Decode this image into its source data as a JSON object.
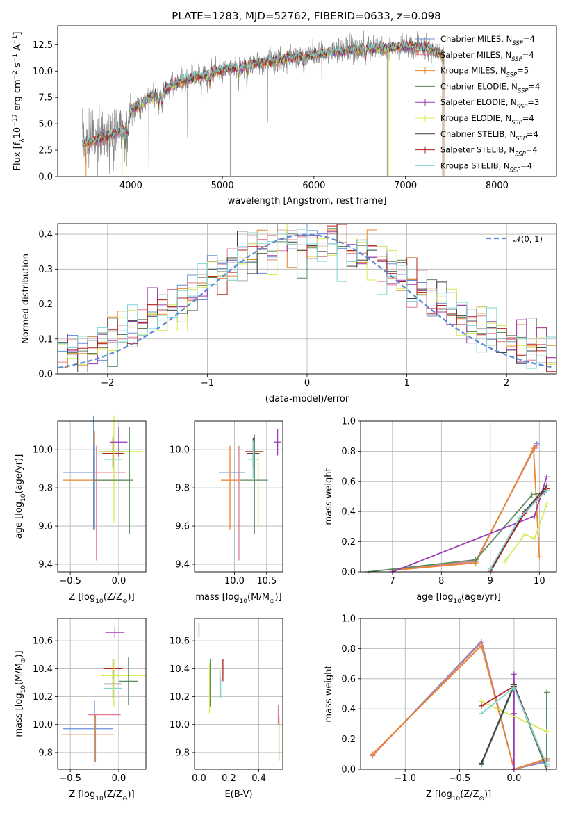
{
  "figure": {
    "title": "PLATE=1283, MJD=52762, FIBERID=0633, z=0.098"
  },
  "series_styles": [
    {
      "name": "Chabrier MILES, N$_{SSP}$=4",
      "label_main": "Chabrier MILES, N",
      "label_sub": "SSP",
      "label_tail": "=4",
      "color": "#6b8fd6"
    },
    {
      "name": "Salpeter MILES, N$_{SSP}$=4",
      "label_main": "Salpeter MILES, N",
      "label_sub": "SSP",
      "label_tail": "=4",
      "color": "#e07b91"
    },
    {
      "name": "Kroupa MILES, N$_{SSP}$=5",
      "label_main": "Kroupa MILES, N",
      "label_sub": "SSP",
      "label_tail": "=5",
      "color": "#e8862c"
    },
    {
      "name": "Chabrier ELODIE, N$_{SSP}$=4",
      "label_main": "Chabrier ELODIE, N",
      "label_sub": "SSP",
      "label_tail": "=4",
      "color": "#5b8a5e"
    },
    {
      "name": "Salpeter ELODIE, N$_{SSP}$=3",
      "label_main": "Salpeter ELODIE, N",
      "label_sub": "SSP",
      "label_tail": "=3",
      "color": "#9a3ab5"
    },
    {
      "name": "Kroupa ELODIE, N$_{SSP}$=4",
      "label_main": "Kroupa ELODIE, N",
      "label_sub": "SSP",
      "label_tail": "=4",
      "color": "#d4ec50"
    },
    {
      "name": "Chabrier STELIB, N$_{SSP}$=4",
      "label_main": "Chabrier STELIB, N",
      "label_sub": "SSP",
      "label_tail": "=4",
      "color": "#3f3f3f"
    },
    {
      "name": "Salpeter STELIB, N$_{SSP}$=4",
      "label_main": "Salpeter STELIB, N",
      "label_sub": "SSP",
      "label_tail": "=4",
      "color": "#b32020"
    },
    {
      "name": "Kroupa STELIB, N$_{SSP}$=4",
      "label_main": "Kroupa STELIB, N",
      "label_sub": "SSP",
      "label_tail": "=4",
      "color": "#7fd6d6"
    }
  ],
  "chart_data": [
    {
      "id": "spectrum",
      "type": "line",
      "title": "PLATE=1283, MJD=52762, FIBERID=0633, z=0.098",
      "xlabel": "wavelength [Angstrom, rest frame]",
      "ylabel_main": "Flux [f",
      "ylabel_sub": "λ",
      "ylabel_tail": "10",
      "ylabel_sup1": "−17",
      "ylabel_mid": " erg cm",
      "ylabel_sup2": "−2",
      "ylabel_mid2": " s",
      "ylabel_sup3": "−1",
      "ylabel_mid3": " A",
      "ylabel_sup4": "−1",
      "ylabel_end": "]",
      "xlim": [
        3200,
        8650
      ],
      "ylim": [
        0,
        14.3
      ],
      "xticks": [
        4000,
        5000,
        6000,
        7000,
        8000
      ],
      "xtick_labels": [
        "4000",
        "5000",
        "6000",
        "7000",
        "8000"
      ],
      "yticks": [
        0,
        2.5,
        5,
        7.5,
        10,
        12.5
      ],
      "ytick_labels": [
        "0.0",
        "2.5",
        "5.0",
        "7.5",
        "10.0",
        "12.5"
      ],
      "data_color": "#808080",
      "data_range": [
        3470,
        7420
      ],
      "continuum_knots": {
        "x": [
          3470,
          3600,
          3700,
          3800,
          3900,
          3950,
          4000,
          4100,
          4200,
          4300,
          4400,
          4600,
          4800,
          5000,
          5200,
          5400,
          5600,
          5800,
          6000,
          6200,
          6400,
          6600,
          6800,
          7000,
          7200,
          7420
        ],
        "y": [
          3.1,
          3.4,
          3.6,
          4.0,
          4.5,
          4.4,
          6.3,
          6.8,
          7.5,
          7.6,
          8.4,
          9.2,
          9.6,
          10.1,
          10.4,
          10.8,
          11.0,
          11.3,
          11.5,
          11.8,
          12.0,
          12.1,
          12.2,
          12.3,
          12.2,
          11.6
        ]
      },
      "absorption_features_x": [
        3934,
        3968,
        4102,
        4304,
        4340,
        4861,
        5175,
        5270,
        5890,
        6563
      ],
      "legend": "upper right"
    },
    {
      "id": "residuals",
      "type": "histogram",
      "xlabel": "(data-model)/error",
      "ylabel": "Normed distribution",
      "xlim": [
        -2.5,
        2.5
      ],
      "ylim": [
        0,
        0.43
      ],
      "xticks": [
        -2,
        -1,
        0,
        1,
        2
      ],
      "xtick_labels": [
        "−2",
        "−1",
        "0",
        "1",
        "2"
      ],
      "yticks": [
        0,
        0.1,
        0.2,
        0.3,
        0.4
      ],
      "ytick_labels": [
        "0.0",
        "0.1",
        "0.2",
        "0.3",
        "0.4"
      ],
      "grid": true,
      "bin_width": 0.1,
      "reference_curve": {
        "label": "𝒩(0, 1)",
        "mean": 0,
        "sigma": 1,
        "color": "#5b8ad6"
      },
      "legend": "upper right"
    },
    {
      "id": "age-vs-Z",
      "type": "errorbar",
      "xlabel_main": "Z [log",
      "xlabel_sub": "10",
      "xlabel_tail": "(Z/Z",
      "xlabel_sub2": "⊙",
      "xlabel_end": ")]",
      "ylabel_main": "age  [log",
      "ylabel_sub": "10",
      "ylabel_tail": "(age/yr)]",
      "xlim": [
        -0.63,
        0.28
      ],
      "ylim": [
        9.36,
        10.15
      ],
      "xticks": [
        -0.5,
        0.0
      ],
      "xtick_labels": [
        "−0.5",
        "0.0"
      ],
      "yticks": [
        9.4,
        9.6,
        9.8,
        10.0
      ],
      "ytick_labels": [
        "9.4",
        "9.6",
        "9.8",
        "10.0"
      ],
      "grid": true,
      "points": [
        {
          "x": -0.26,
          "xerr": 0.32,
          "y": 9.88,
          "yerr": 0.3,
          "series": 0
        },
        {
          "x": -0.25,
          "xerr": 0.33,
          "y": 9.84,
          "yerr": 0.26,
          "series": 2
        },
        {
          "x": -0.25,
          "xerr": 0.0,
          "y": 9.8,
          "yerr": 0.22,
          "series": 0
        },
        {
          "x": -0.23,
          "xerr": 0.0,
          "y": 9.72,
          "yerr": 0.3,
          "series": 1
        },
        {
          "x": -0.1,
          "xerr": 0.17,
          "y": 9.88,
          "yerr": 0.0,
          "series": 1
        },
        {
          "x": -0.06,
          "xerr": 0.12,
          "y": 9.99,
          "yerr": 0.08,
          "series": 6
        },
        {
          "x": -0.06,
          "xerr": 0.11,
          "y": 9.98,
          "yerr": 0.08,
          "series": 7
        },
        {
          "x": -0.06,
          "xerr": 0.09,
          "y": 9.95,
          "yerr": 0.0,
          "series": 8
        },
        {
          "x": -0.05,
          "xerr": 0.0,
          "y": 9.9,
          "yerr": 0.28,
          "series": 5
        },
        {
          "x": 0.0,
          "xerr": 0.09,
          "y": 10.04,
          "yerr": 0.08,
          "series": 4
        },
        {
          "x": 0.02,
          "xerr": 0.23,
          "y": 9.99,
          "yerr": 0.0,
          "series": 5
        },
        {
          "x": -0.05,
          "xerr": 0.2,
          "y": 9.84,
          "yerr": 0.0,
          "series": 3
        },
        {
          "x": 0.11,
          "xerr": 0.0,
          "y": 9.84,
          "yerr": 0.28,
          "series": 3
        }
      ]
    },
    {
      "id": "age-vs-mass",
      "type": "errorbar",
      "xlabel_main": "mass [log",
      "xlabel_sub": "10",
      "xlabel_tail": "(M/M",
      "xlabel_sub2": "⊙",
      "xlabel_end": ")]",
      "xlim": [
        9.38,
        10.75
      ],
      "ylim": [
        9.36,
        10.15
      ],
      "xticks": [
        10.0,
        10.5
      ],
      "xtick_labels": [
        "10.0",
        "10.5"
      ],
      "yticks": [
        9.4,
        9.6,
        9.8,
        10.0
      ],
      "ytick_labels": [
        "9.4",
        "9.6",
        "9.8",
        "10.0"
      ],
      "grid": true,
      "points": [
        {
          "x": 9.96,
          "xerr": 0.2,
          "y": 9.88,
          "yerr": 0.0,
          "series": 0
        },
        {
          "x": 9.93,
          "xerr": 0.14,
          "y": 9.84,
          "yerr": 0.0,
          "series": 2
        },
        {
          "x": 9.93,
          "xerr": 0.0,
          "y": 9.8,
          "yerr": 0.22,
          "series": 2
        },
        {
          "x": 10.07,
          "xerr": 0.0,
          "y": 9.72,
          "yerr": 0.3,
          "series": 1
        },
        {
          "x": 10.29,
          "xerr": 0.1,
          "y": 9.98,
          "yerr": 0.08,
          "series": 6
        },
        {
          "x": 10.31,
          "xerr": 0.14,
          "y": 9.99,
          "yerr": 0.08,
          "series": 7
        },
        {
          "x": 10.29,
          "xerr": 0.08,
          "y": 9.95,
          "yerr": 0.1,
          "series": 8
        },
        {
          "x": 10.37,
          "xerr": 0.0,
          "y": 9.8,
          "yerr": 0.2,
          "series": 5
        },
        {
          "x": 10.31,
          "xerr": 0.0,
          "y": 9.82,
          "yerr": 0.26,
          "series": 3
        },
        {
          "x": 10.3,
          "xerr": 0.22,
          "y": 9.84,
          "yerr": 0.0,
          "series": 3
        },
        {
          "x": 10.67,
          "xerr": 0.05,
          "y": 10.04,
          "yerr": 0.07,
          "series": 4
        }
      ]
    },
    {
      "id": "weight-vs-age",
      "type": "line",
      "xlabel_main": "age  [log",
      "xlabel_sub": "10",
      "xlabel_tail": "(age/yr)]",
      "ylabel": "mass weight",
      "xlim": [
        6.35,
        10.35
      ],
      "ylim": [
        0,
        1.0
      ],
      "xticks": [
        7,
        8,
        9,
        10
      ],
      "xtick_labels": [
        "7",
        "8",
        "9",
        "10"
      ],
      "yticks": [
        0,
        0.2,
        0.4,
        0.6,
        0.8,
        1.0
      ],
      "ytick_labels": [
        "0.0",
        "0.2",
        "0.4",
        "0.6",
        "0.8",
        "1.0"
      ],
      "grid": true,
      "series": [
        {
          "style": 0,
          "x": [
            7.0,
            8.7,
            9.9,
            9.95
          ],
          "y": [
            0.01,
            0.07,
            0.82,
            0.85
          ]
        },
        {
          "style": 1,
          "x": [
            7.0,
            8.7,
            9.9,
            9.95
          ],
          "y": [
            0.01,
            0.07,
            0.82,
            0.84
          ]
        },
        {
          "style": 2,
          "x": [
            7.0,
            8.7,
            9.88,
            10.0
          ],
          "y": [
            0.01,
            0.06,
            0.82,
            0.1
          ]
        },
        {
          "style": 3,
          "x": [
            6.5,
            8.7,
            9.85,
            10.1
          ],
          "y": [
            0.0,
            0.08,
            0.51,
            0.53
          ]
        },
        {
          "style": 4,
          "x": [
            7.0,
            9.9,
            10.15
          ],
          "y": [
            0.0,
            0.37,
            0.63
          ]
        },
        {
          "style": 5,
          "x": [
            9.3,
            9.7,
            9.9,
            10.15
          ],
          "y": [
            0.07,
            0.25,
            0.22,
            0.45
          ]
        },
        {
          "style": 6,
          "x": [
            9.0,
            9.7,
            10.15
          ],
          "y": [
            0.0,
            0.4,
            0.57
          ]
        },
        {
          "style": 7,
          "x": [
            9.0,
            9.7,
            10.15
          ],
          "y": [
            0.01,
            0.39,
            0.55
          ]
        },
        {
          "style": 8,
          "x": [
            9.0,
            9.6,
            10.15
          ],
          "y": [
            0.02,
            0.36,
            0.54
          ]
        }
      ]
    },
    {
      "id": "mass-vs-Z",
      "type": "errorbar",
      "xlabel_main": "Z [log",
      "xlabel_sub": "10",
      "xlabel_tail": "(Z/Z",
      "xlabel_sub2": "⊙",
      "xlabel_end": ")]",
      "ylabel_main": "mass [log",
      "ylabel_sub": "10",
      "ylabel_tail": "(M/M",
      "ylabel_sub2": "⊙",
      "ylabel_end": ")]",
      "xlim": [
        -0.63,
        0.28
      ],
      "ylim": [
        9.68,
        10.76
      ],
      "xticks": [
        -0.5,
        0.0
      ],
      "xtick_labels": [
        "−0.5",
        "0.0"
      ],
      "yticks": [
        9.8,
        10.0,
        10.2,
        10.4,
        10.6
      ],
      "ytick_labels": [
        "9.8",
        "10.0",
        "10.2",
        "10.4",
        "10.6"
      ],
      "grid": true,
      "points": [
        {
          "x": -0.32,
          "xerr": 0.26,
          "y": 9.97,
          "yerr": 0.0,
          "series": 0
        },
        {
          "x": -0.32,
          "xerr": 0.27,
          "y": 9.93,
          "yerr": 0.0,
          "series": 2
        },
        {
          "x": -0.25,
          "xerr": 0.0,
          "y": 9.95,
          "yerr": 0.22,
          "series": 0
        },
        {
          "x": -0.15,
          "xerr": 0.17,
          "y": 10.07,
          "yerr": 0.0,
          "series": 1
        },
        {
          "x": -0.24,
          "xerr": 0.0,
          "y": 9.9,
          "yerr": 0.17,
          "series": 2
        },
        {
          "x": -0.06,
          "xerr": 0.1,
          "y": 10.4,
          "yerr": 0.07,
          "series": 7
        },
        {
          "x": -0.06,
          "xerr": 0.09,
          "y": 10.29,
          "yerr": 0.1,
          "series": 6
        },
        {
          "x": -0.06,
          "xerr": 0.09,
          "y": 10.26,
          "yerr": 0.0,
          "series": 8
        },
        {
          "x": 0.05,
          "xerr": 0.23,
          "y": 10.35,
          "yerr": 0.0,
          "series": 5
        },
        {
          "x": 0.1,
          "xerr": 0.1,
          "y": 10.31,
          "yerr": 0.17,
          "series": 3
        },
        {
          "x": -0.05,
          "xerr": 0.0,
          "y": 10.3,
          "yerr": 0.17,
          "series": 5
        },
        {
          "x": -0.04,
          "xerr": 0.1,
          "y": 10.66,
          "yerr": 0.04,
          "series": 4
        }
      ]
    },
    {
      "id": "mass-vs-ebv",
      "type": "errorbar",
      "xlabel": "E(B-V)",
      "xlim": [
        -0.03,
        0.56
      ],
      "ylim": [
        9.68,
        10.76
      ],
      "xticks": [
        0.0,
        0.2,
        0.4
      ],
      "xtick_labels": [
        "0.0",
        "0.2",
        "0.4"
      ],
      "yticks": [
        9.8,
        10.0,
        10.2,
        10.4,
        10.6
      ],
      "ytick_labels": [
        "9.8",
        "10.0",
        "10.2",
        "10.4",
        "10.6"
      ],
      "grid": true,
      "points": [
        {
          "x": 0.0,
          "xerr": 0,
          "y": 10.68,
          "yerr": 0.05,
          "series": 4
        },
        {
          "x": 0.07,
          "xerr": 0,
          "y": 10.26,
          "yerr": 0.18,
          "series": 5
        },
        {
          "x": 0.075,
          "xerr": 0,
          "y": 10.3,
          "yerr": 0.17,
          "series": 3
        },
        {
          "x": 0.14,
          "xerr": 0,
          "y": 10.29,
          "yerr": 0.1,
          "series": 6
        },
        {
          "x": 0.145,
          "xerr": 0,
          "y": 10.26,
          "yerr": 0.07,
          "series": 8
        },
        {
          "x": 0.16,
          "xerr": 0,
          "y": 10.39,
          "yerr": 0.08,
          "series": 7
        },
        {
          "x": 0.53,
          "xerr": 0,
          "y": 10.07,
          "yerr": 0.07,
          "series": 1
        },
        {
          "x": 0.535,
          "xerr": 0,
          "y": 9.9,
          "yerr": 0.16,
          "series": 2
        }
      ]
    },
    {
      "id": "weight-vs-Z",
      "type": "line",
      "xlabel_main": "Z [log",
      "xlabel_sub": "10",
      "xlabel_tail": "(Z/Z",
      "xlabel_sub2": "⊙",
      "xlabel_end": ")]",
      "ylabel": "mass weight",
      "xlim": [
        -1.41,
        0.39
      ],
      "ylim": [
        0,
        1.0
      ],
      "xticks": [
        -1.0,
        -0.5,
        0.0
      ],
      "xtick_labels": [
        "−1.0",
        "−0.5",
        "0.0"
      ],
      "yticks": [
        0,
        0.2,
        0.4,
        0.6,
        0.8,
        1.0
      ],
      "ytick_labels": [
        "0.0",
        "0.2",
        "0.4",
        "0.6",
        "0.8",
        "1.0"
      ],
      "grid": true,
      "series": [
        {
          "style": 0,
          "x": [
            -1.3,
            -0.3,
            0.0,
            0.3
          ],
          "y": [
            0.09,
            0.85,
            0.0,
            0.05
          ]
        },
        {
          "style": 1,
          "x": [
            -1.3,
            -0.3,
            0.0,
            0.3
          ],
          "y": [
            0.09,
            0.84,
            0.0,
            0.06
          ]
        },
        {
          "style": 2,
          "x": [
            -1.3,
            -0.3,
            0.0,
            0.3
          ],
          "y": [
            0.1,
            0.82,
            0.0,
            0.07
          ]
        },
        {
          "style": 3,
          "x": [
            -0.3,
            0.0,
            0.3,
            0.3
          ],
          "y": [
            0.03,
            0.55,
            0.0,
            0.51
          ]
        },
        {
          "style": 4,
          "x": [
            0.0,
            0.0,
            0.0
          ],
          "y": [
            0.0,
            0.63,
            0.37
          ]
        },
        {
          "style": 5,
          "x": [
            -0.3,
            0.3
          ],
          "y": [
            0.45,
            0.25
          ]
        },
        {
          "style": 6,
          "x": [
            -0.3,
            0.0,
            0.3
          ],
          "y": [
            0.04,
            0.56,
            0.02
          ]
        },
        {
          "style": 7,
          "x": [
            -0.3,
            0.0,
            0.3
          ],
          "y": [
            0.42,
            0.55,
            0.02
          ]
        },
        {
          "style": 8,
          "x": [
            -0.3,
            0.0,
            0.3
          ],
          "y": [
            0.37,
            0.54,
            0.03
          ]
        }
      ]
    }
  ]
}
